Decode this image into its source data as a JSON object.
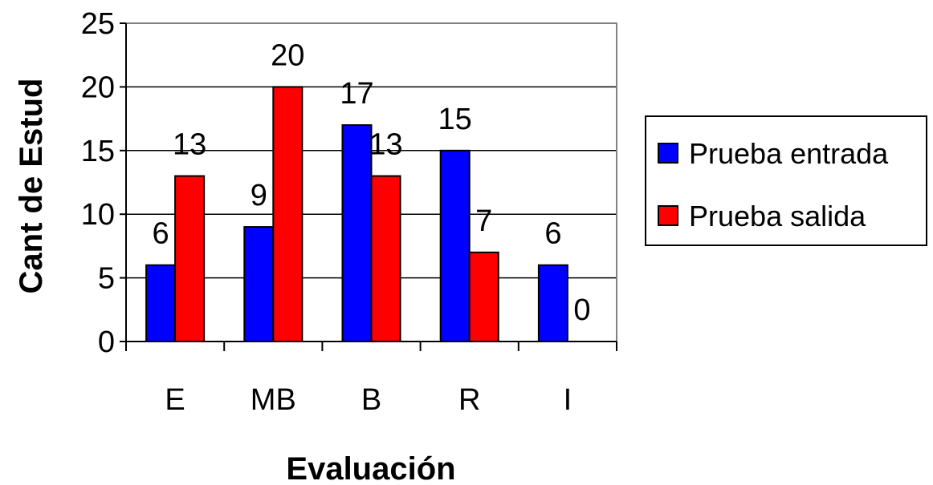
{
  "chart_data": {
    "type": "bar",
    "categories": [
      "E",
      "MB",
      "B",
      "R",
      "I"
    ],
    "series": [
      {
        "name": "Prueba entrada",
        "values": [
          6,
          9,
          17,
          15,
          6
        ],
        "color": "#0000ff"
      },
      {
        "name": "Prueba salida",
        "values": [
          13,
          20,
          13,
          7,
          0
        ],
        "color": "#ff0000"
      }
    ],
    "title": "",
    "xlabel": "Evaluación",
    "ylabel": "Cant de Estud",
    "ylim": [
      0,
      25
    ],
    "yticks": [
      0,
      5,
      10,
      15,
      20,
      25
    ],
    "grid": true,
    "legend_position": "right",
    "data_labels": true
  }
}
